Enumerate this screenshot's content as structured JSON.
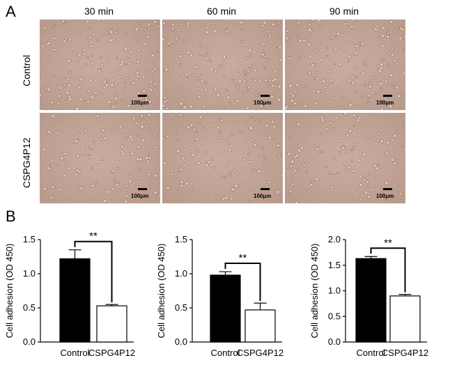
{
  "panel_a": {
    "letter": "A",
    "columns": [
      "30 min",
      "60 min",
      "90 min"
    ],
    "rows": [
      "Control",
      "CSPG4P12"
    ],
    "scale_label": "100μm"
  },
  "panel_b": {
    "letter": "B"
  },
  "chart_data": [
    {
      "type": "bar",
      "categories": [
        "Control",
        "CSPG4P12"
      ],
      "values": [
        1.22,
        0.53
      ],
      "errors": [
        0.13,
        0.02
      ],
      "colors": [
        "#000000",
        "#ffffff"
      ],
      "ylabel": "Cell adhesion (OD 450)",
      "ylim": [
        0,
        1.5
      ],
      "yticks": [
        "0.0",
        "0.5",
        "1.0",
        "1.5"
      ],
      "significance": "**"
    },
    {
      "type": "bar",
      "categories": [
        "Control",
        "CSPG4P12"
      ],
      "values": [
        0.98,
        0.47
      ],
      "errors": [
        0.05,
        0.1
      ],
      "colors": [
        "#000000",
        "#ffffff"
      ],
      "ylabel": "Cell adhesion (OD 450)",
      "ylim": [
        0,
        1.5
      ],
      "yticks": [
        "0.0",
        "0.5",
        "1.0",
        "1.5"
      ],
      "significance": "**"
    },
    {
      "type": "bar",
      "categories": [
        "Control",
        "CSPG4P12"
      ],
      "values": [
        1.63,
        0.9
      ],
      "errors": [
        0.04,
        0.03
      ],
      "colors": [
        "#000000",
        "#ffffff"
      ],
      "ylabel": "Cell adhesion (OD 450)",
      "ylim": [
        0,
        2.0
      ],
      "yticks": [
        "0.0",
        "0.5",
        "1.0",
        "1.5",
        "2.0"
      ],
      "significance": "**"
    }
  ]
}
